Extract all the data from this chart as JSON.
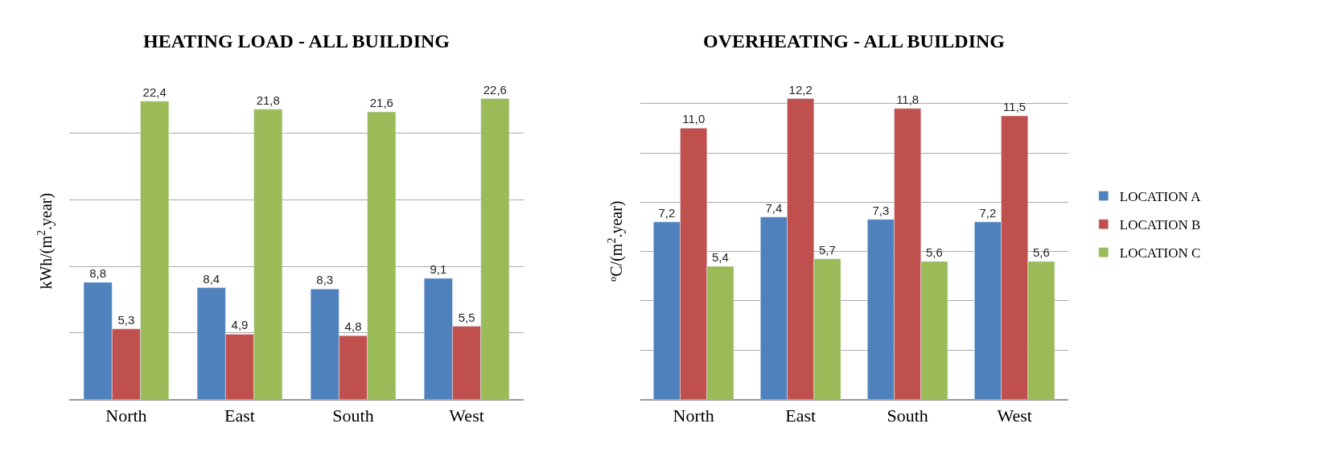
{
  "chart_data": [
    {
      "type": "bar",
      "title": "HEATING LOAD - ALL BUILDING",
      "ylabel": "kWh/(m$^{2}$.year)",
      "categories": [
        "North",
        "East",
        "South",
        "West"
      ],
      "grid": "y",
      "series": [
        {
          "color": "#4f81bd",
          "values": [
            8.8,
            8.4,
            8.3,
            9.1
          ],
          "value_labels": [
            "8,8",
            "8,4",
            "8,3",
            "9,1"
          ]
        },
        {
          "color": "#c0504d",
          "values": [
            5.3,
            4.9,
            4.8,
            5.5
          ],
          "value_labels": [
            "5,3",
            "4,9",
            "4,8",
            "5,5"
          ]
        },
        {
          "color": "#9bbb59",
          "values": [
            22.4,
            21.8,
            21.6,
            22.6
          ],
          "value_labels": [
            "22,4",
            "21,8",
            "21,6",
            "22,6"
          ]
        }
      ]
    },
    {
      "type": "bar",
      "title": "OVERHEATING - ALL BUILDING",
      "ylabel": "ºC/(m$^{2}$.year)",
      "categories": [
        "North",
        "East",
        "South",
        "West"
      ],
      "grid": "y",
      "legend": "right",
      "series": [
        {
          "name": "LOCATION A",
          "color": "#4f81bd",
          "values": [
            7.2,
            7.4,
            7.3,
            7.2
          ],
          "value_labels": [
            "7,2",
            "7,4",
            "7,3",
            "7,2"
          ]
        },
        {
          "name": "LOCATION B",
          "color": "#c0504d",
          "values": [
            11.0,
            12.2,
            11.8,
            11.5
          ],
          "value_labels": [
            "11,0",
            "12,2",
            "11,8",
            "11,5"
          ]
        },
        {
          "name": "LOCATION C",
          "color": "#9bbb59",
          "values": [
            5.4,
            5.7,
            5.6,
            5.6
          ],
          "value_labels": [
            "5,4",
            "5,7",
            "5,6",
            "5,6"
          ]
        }
      ]
    }
  ]
}
